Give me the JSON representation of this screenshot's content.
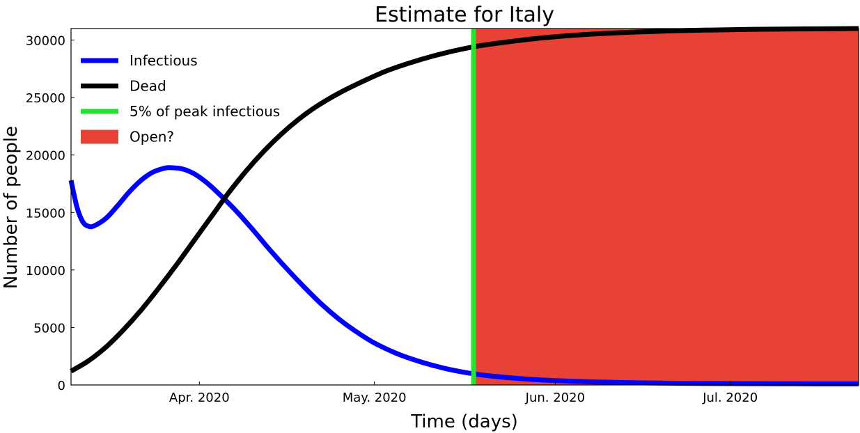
{
  "chart_data": {
    "type": "line",
    "title": "Estimate for Italy",
    "xlabel": "Time (days)",
    "ylabel": "Number of people",
    "x_start": "2020-03-10",
    "x_end": "2020-07-23",
    "ylim": [
      0,
      31000
    ],
    "x_ticks": [
      {
        "date": "2020-04-01",
        "label": "Apr. 2020"
      },
      {
        "date": "2020-05-01",
        "label": "May. 2020"
      },
      {
        "date": "2020-06-01",
        "label": "Jun. 2020"
      },
      {
        "date": "2020-07-01",
        "label": "Jul. 2020"
      }
    ],
    "y_ticks": [
      0,
      5000,
      10000,
      15000,
      20000,
      25000,
      30000
    ],
    "grid": false,
    "legend_position": "top-left",
    "series": [
      {
        "name": "Infectious",
        "color": "#0000ff",
        "points": [
          [
            "2020-03-10",
            17800
          ],
          [
            "2020-03-11",
            15500
          ],
          [
            "2020-03-12",
            14200
          ],
          [
            "2020-03-13",
            13800
          ],
          [
            "2020-03-14",
            13850
          ],
          [
            "2020-03-16",
            14500
          ],
          [
            "2020-03-18",
            15600
          ],
          [
            "2020-03-20",
            16800
          ],
          [
            "2020-03-22",
            17800
          ],
          [
            "2020-03-24",
            18500
          ],
          [
            "2020-03-26",
            18850
          ],
          [
            "2020-03-27",
            18900
          ],
          [
            "2020-03-29",
            18800
          ],
          [
            "2020-03-31",
            18400
          ],
          [
            "2020-04-02",
            17700
          ],
          [
            "2020-04-04",
            16800
          ],
          [
            "2020-04-07",
            15300
          ],
          [
            "2020-04-10",
            13600
          ],
          [
            "2020-04-13",
            11800
          ],
          [
            "2020-04-16",
            10100
          ],
          [
            "2020-04-19",
            8500
          ],
          [
            "2020-04-22",
            7000
          ],
          [
            "2020-04-25",
            5700
          ],
          [
            "2020-04-28",
            4600
          ],
          [
            "2020-05-01",
            3650
          ],
          [
            "2020-05-05",
            2700
          ],
          [
            "2020-05-09",
            2000
          ],
          [
            "2020-05-13",
            1450
          ],
          [
            "2020-05-17",
            1050
          ],
          [
            "2020-05-21",
            780
          ],
          [
            "2020-05-26",
            550
          ],
          [
            "2020-06-01",
            380
          ],
          [
            "2020-06-08",
            260
          ],
          [
            "2020-06-15",
            190
          ],
          [
            "2020-06-22",
            150
          ],
          [
            "2020-07-01",
            120
          ],
          [
            "2020-07-10",
            105
          ],
          [
            "2020-07-23",
            95
          ]
        ]
      },
      {
        "name": "Dead",
        "color": "#000000",
        "points": [
          [
            "2020-03-10",
            1200
          ],
          [
            "2020-03-13",
            2100
          ],
          [
            "2020-03-16",
            3300
          ],
          [
            "2020-03-19",
            4800
          ],
          [
            "2020-03-22",
            6500
          ],
          [
            "2020-03-25",
            8400
          ],
          [
            "2020-03-28",
            10400
          ],
          [
            "2020-03-31",
            12500
          ],
          [
            "2020-04-03",
            14600
          ],
          [
            "2020-04-06",
            16700
          ],
          [
            "2020-04-09",
            18600
          ],
          [
            "2020-04-12",
            20300
          ],
          [
            "2020-04-15",
            21800
          ],
          [
            "2020-04-18",
            23100
          ],
          [
            "2020-04-21",
            24200
          ],
          [
            "2020-04-25",
            25400
          ],
          [
            "2020-04-29",
            26400
          ],
          [
            "2020-05-03",
            27300
          ],
          [
            "2020-05-07",
            28000
          ],
          [
            "2020-05-11",
            28600
          ],
          [
            "2020-05-15",
            29100
          ],
          [
            "2020-05-19",
            29500
          ],
          [
            "2020-05-24",
            29850
          ],
          [
            "2020-05-30",
            30200
          ],
          [
            "2020-06-06",
            30480
          ],
          [
            "2020-06-15",
            30700
          ],
          [
            "2020-06-25",
            30850
          ],
          [
            "2020-07-05",
            30930
          ],
          [
            "2020-07-15",
            30970
          ],
          [
            "2020-07-23",
            31000
          ]
        ]
      }
    ],
    "marker_line": {
      "name": "5% of peak infectious",
      "date": "2020-05-18",
      "color": "#22e32d"
    },
    "open_region": {
      "name": "Open?",
      "start": "2020-05-18",
      "end": "2020-07-23",
      "color": "#e84135"
    }
  }
}
